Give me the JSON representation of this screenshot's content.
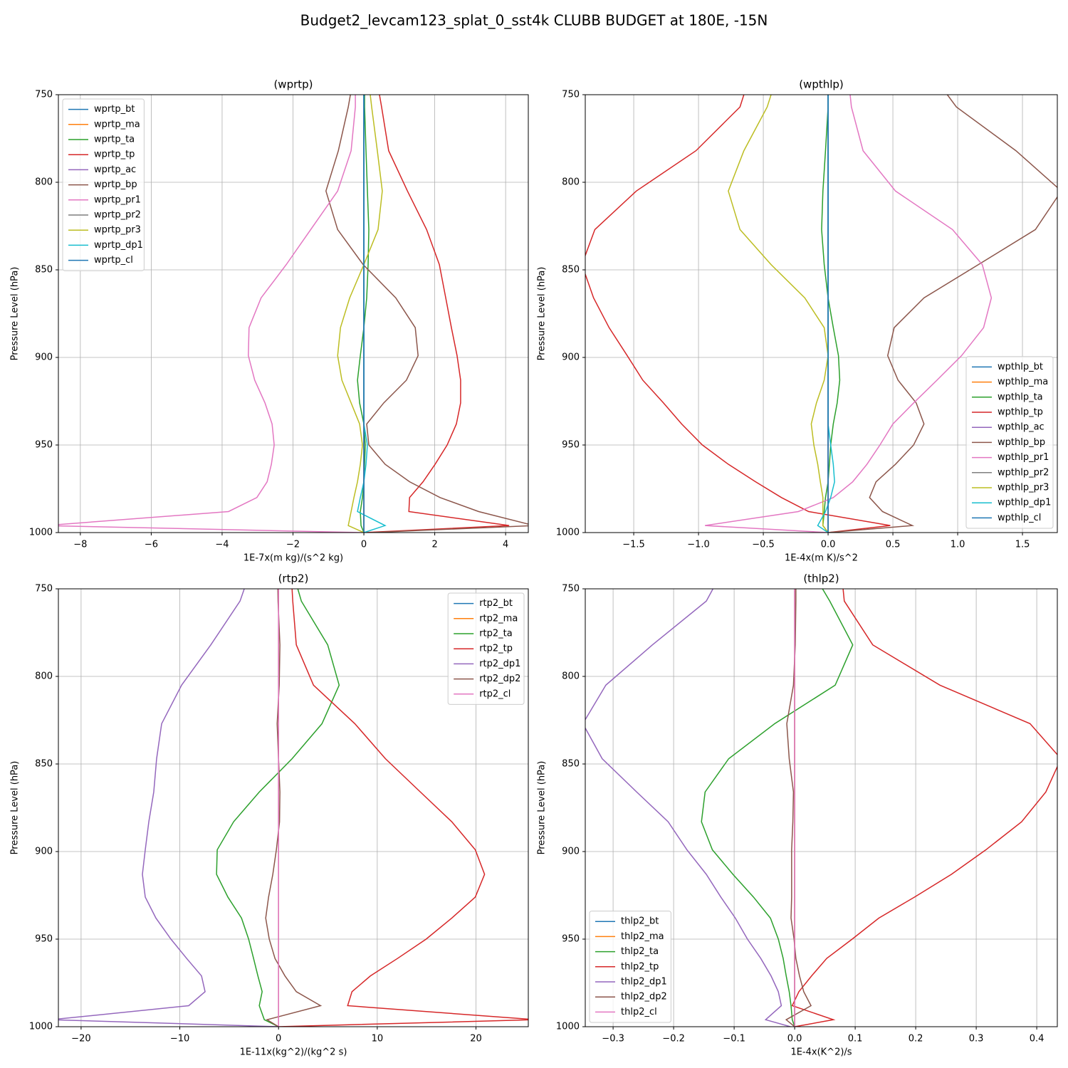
{
  "title": "Budget2_levcam123_splat_0_sst4k CLUBB BUDGET at 180E, -15N",
  "chart_data": [
    {
      "type": "line",
      "title": "(wprtp)",
      "xlabel": "1E-7x(m kg)/(s^2 kg)",
      "ylabel": "Pressure Level (hPa)",
      "grid": true,
      "legend": "upper left",
      "xlim": [
        -8.62,
        4.64
      ],
      "xticks": [
        {
          "value": -8,
          "label": "−8"
        },
        {
          "value": -6,
          "label": "−6"
        },
        {
          "value": -4,
          "label": "−4"
        },
        {
          "value": -2,
          "label": "−2"
        },
        0,
        2,
        4
      ],
      "ylim": [
        1000,
        750
      ],
      "yticks": [
        750,
        800,
        850,
        900,
        950,
        1000
      ],
      "y": [
        750,
        757,
        782,
        805,
        827,
        847,
        866,
        883,
        899,
        913,
        926,
        938,
        950,
        961,
        971,
        980,
        988,
        996,
        1000
      ],
      "series": [
        {
          "name": "wprtp_bt",
          "color": "#1f77b4",
          "values": [
            0,
            0,
            0,
            0,
            0,
            0,
            0,
            0,
            0,
            0,
            0,
            0,
            0,
            0,
            0,
            0,
            0,
            0,
            0
          ]
        },
        {
          "name": "wprtp_ma",
          "color": "#ff7f0e",
          "values": [
            0,
            0,
            0,
            0,
            0,
            0,
            0,
            0,
            0,
            0,
            0,
            0,
            0,
            0,
            0,
            0,
            0,
            0,
            0
          ]
        },
        {
          "name": "wprtp_ta",
          "color": "#2ca02c",
          "values": [
            0.02,
            0.02,
            0.06,
            0.1,
            0.14,
            0.12,
            0.08,
            0,
            -0.1,
            -0.18,
            -0.12,
            0,
            0.04,
            0.02,
            0,
            -0.04,
            -0.1,
            -0.08,
            0
          ]
        },
        {
          "name": "wprtp_tp",
          "color": "#d62728",
          "values": [
            0.44,
            0.5,
            0.7,
            1.23,
            1.77,
            2.13,
            2.31,
            2.47,
            2.63,
            2.73,
            2.73,
            2.61,
            2.35,
            2.01,
            1.67,
            1.29,
            1.27,
            4.1,
            0
          ]
        },
        {
          "name": "wprtp_ac",
          "color": "#9467bd",
          "values": [
            0,
            0,
            0,
            0,
            0,
            0,
            0,
            0,
            0,
            0,
            0,
            0,
            0,
            0,
            0,
            0,
            0,
            0,
            0
          ]
        },
        {
          "name": "wprtp_bp",
          "color": "#8c564b",
          "values": [
            -0.38,
            -0.44,
            -0.72,
            -1.07,
            -0.74,
            -0.02,
            0.9,
            1.45,
            1.53,
            1.2,
            0.56,
            0.08,
            0.14,
            0.6,
            1.29,
            2.15,
            3.24,
            4.8,
            0.2
          ]
        },
        {
          "name": "wprtp_pr1",
          "color": "#e377c2",
          "values": [
            -0.24,
            -0.24,
            -0.36,
            -0.74,
            -1.5,
            -2.19,
            -2.9,
            -3.24,
            -3.26,
            -3.08,
            -2.79,
            -2.59,
            -2.53,
            -2.61,
            -2.73,
            -3.02,
            -3.82,
            -9,
            -0.06
          ]
        },
        {
          "name": "wprtp_pr2",
          "color": "#7f7f7f",
          "values": [
            0,
            0,
            0,
            0,
            0,
            0,
            0,
            0,
            0,
            0,
            0,
            0,
            0,
            0,
            0,
            0,
            0,
            0,
            0
          ]
        },
        {
          "name": "wprtp_pr3",
          "color": "#bcbd22",
          "values": [
            0.18,
            0.22,
            0.38,
            0.52,
            0.4,
            0,
            -0.4,
            -0.66,
            -0.74,
            -0.62,
            -0.36,
            -0.12,
            -0.04,
            -0.1,
            -0.18,
            -0.28,
            -0.36,
            -0.44,
            0
          ]
        },
        {
          "name": "wprtp_dp1",
          "color": "#17becf",
          "values": [
            0,
            0,
            0,
            0,
            0,
            0,
            0,
            0,
            0,
            0,
            0,
            0,
            0.1,
            0.06,
            0,
            -0.1,
            -0.18,
            0.6,
            0
          ]
        },
        {
          "name": "wprtp_cl",
          "color": "#1f77b4",
          "values": [
            0,
            0,
            0,
            0,
            0,
            0,
            0,
            0,
            0,
            0,
            0,
            0,
            0,
            0,
            0,
            0,
            0,
            0,
            0
          ]
        }
      ]
    },
    {
      "type": "line",
      "title": "(wpthlp)",
      "xlabel": "1E-4x(m K)/s^2",
      "ylabel": "Pressure Level (hPa)",
      "grid": true,
      "legend": "lower right",
      "xlim": [
        -1.874,
        1.769
      ],
      "xticks": [
        {
          "value": -1.5,
          "label": "−1.5"
        },
        {
          "value": -1,
          "label": "−1.0"
        },
        {
          "value": -0.5,
          "label": "−0.5"
        },
        {
          "value": 0,
          "label": "0.0"
        },
        0.5,
        {
          "value": 1,
          "label": "1.0"
        },
        1.5
      ],
      "ylim": [
        1000,
        750
      ],
      "yticks": [
        750,
        800,
        850,
        900,
        950,
        1000
      ],
      "y": [
        750,
        757,
        782,
        805,
        827,
        847,
        866,
        883,
        899,
        913,
        926,
        938,
        950,
        961,
        971,
        980,
        988,
        996,
        1000
      ],
      "series": [
        {
          "name": "wpthlp_bt",
          "color": "#1f77b4",
          "values": [
            0,
            0,
            0,
            0,
            0,
            0,
            0,
            0,
            0,
            0,
            0,
            0,
            0,
            0,
            0,
            0,
            0,
            0,
            0
          ]
        },
        {
          "name": "wpthlp_ma",
          "color": "#ff7f0e",
          "values": [
            0,
            0,
            0,
            0,
            0,
            0,
            0,
            0,
            0,
            0,
            0,
            0,
            0,
            0,
            0,
            0,
            0,
            0,
            0
          ]
        },
        {
          "name": "wpthlp_ta",
          "color": "#2ca02c",
          "values": [
            0,
            0,
            -0.02,
            -0.04,
            -0.05,
            -0.03,
            0,
            0.04,
            0.08,
            0.09,
            0.07,
            0.04,
            0.02,
            0.01,
            0,
            -0.02,
            -0.03,
            -0.04,
            0
          ]
        },
        {
          "name": "wpthlp_tp",
          "color": "#d62728",
          "values": [
            -0.65,
            -0.68,
            -1.02,
            -1.48,
            -1.8,
            -1.9,
            -1.81,
            -1.69,
            -1.55,
            -1.43,
            -1.27,
            -1.13,
            -0.97,
            -0.77,
            -0.56,
            -0.36,
            -0.15,
            0.48,
            0
          ]
        },
        {
          "name": "wpthlp_ac",
          "color": "#9467bd",
          "values": [
            0,
            0,
            0,
            0,
            0,
            0,
            0,
            0,
            0,
            0,
            0,
            0,
            0,
            0,
            0,
            0,
            0,
            0,
            0
          ]
        },
        {
          "name": "wpthlp_bp",
          "color": "#8c564b",
          "values": [
            0.92,
            0.99,
            1.45,
            1.8,
            1.6,
            1.16,
            0.74,
            0.51,
            0.46,
            0.54,
            0.68,
            0.74,
            0.66,
            0.52,
            0.37,
            0.32,
            0.42,
            0.65,
            0
          ]
        },
        {
          "name": "wpthlp_pr1",
          "color": "#e377c2",
          "values": [
            0.17,
            0.18,
            0.27,
            0.52,
            0.96,
            1.19,
            1.26,
            1.2,
            1.03,
            0.84,
            0.66,
            0.5,
            0.4,
            0.3,
            0.19,
            0.04,
            -0.23,
            -0.95,
            0
          ]
        },
        {
          "name": "wpthlp_pr2",
          "color": "#7f7f7f",
          "values": [
            0,
            0,
            0,
            0,
            0,
            0,
            0,
            0,
            0,
            0,
            0,
            0,
            0,
            0,
            0,
            0,
            0,
            0,
            0
          ]
        },
        {
          "name": "wpthlp_pr3",
          "color": "#bcbd22",
          "values": [
            -0.44,
            -0.47,
            -0.65,
            -0.77,
            -0.68,
            -0.44,
            -0.18,
            -0.03,
            0,
            -0.03,
            -0.09,
            -0.13,
            -0.11,
            -0.08,
            -0.06,
            -0.04,
            -0.04,
            -0.04,
            0
          ]
        },
        {
          "name": "wpthlp_dp1",
          "color": "#17becf",
          "values": [
            0,
            0,
            0,
            0,
            0,
            0,
            0,
            0,
            0,
            0,
            0,
            0,
            0.02,
            0.04,
            0.05,
            0.02,
            -0.02,
            -0.08,
            0
          ]
        },
        {
          "name": "wpthlp_cl",
          "color": "#1f77b4",
          "values": [
            0,
            0,
            0,
            0,
            0,
            0,
            0,
            0,
            0,
            0,
            0,
            0,
            0,
            0,
            0,
            0,
            0,
            0,
            0
          ]
        }
      ]
    },
    {
      "type": "line",
      "title": "(rtp2)",
      "xlabel": "1E-11x(kg^2)/(kg^2 s)",
      "ylabel": "Pressure Level (hPa)",
      "grid": true,
      "legend": "upper right",
      "xlim": [
        -22.3,
        25.3
      ],
      "xticks": [
        {
          "value": -20,
          "label": "−20"
        },
        {
          "value": -10,
          "label": "−10"
        },
        0,
        10,
        20
      ],
      "ylim": [
        1000,
        750
      ],
      "yticks": [
        750,
        800,
        850,
        900,
        950,
        1000
      ],
      "y": [
        750,
        757,
        782,
        805,
        827,
        847,
        866,
        883,
        899,
        913,
        926,
        938,
        950,
        961,
        971,
        980,
        988,
        996,
        1000
      ],
      "series": [
        {
          "name": "rtp2_bt",
          "color": "#1f77b4",
          "values": [
            0,
            0,
            0,
            0,
            0,
            0,
            0,
            0,
            0,
            0,
            0,
            0,
            0,
            0,
            0,
            0,
            0,
            0,
            0
          ]
        },
        {
          "name": "rtp2_ma",
          "color": "#ff7f0e",
          "values": [
            0,
            0,
            0,
            0,
            0,
            0,
            0,
            0,
            0,
            0,
            0,
            0,
            0,
            0,
            0,
            0,
            0,
            0,
            0
          ]
        },
        {
          "name": "rtp2_ta",
          "color": "#2ca02c",
          "values": [
            1.95,
            2.31,
            4.98,
            6.14,
            4.4,
            1.37,
            -1.95,
            -4.55,
            -6.21,
            -6.28,
            -5.13,
            -3.75,
            -3.03,
            -2.53,
            -2.09,
            -1.66,
            -1.95,
            -1.44,
            0
          ]
        },
        {
          "name": "rtp2_tp",
          "color": "#d62728",
          "values": [
            1.37,
            1.44,
            1.8,
            3.54,
            7.73,
            10.83,
            14.37,
            17.55,
            19.93,
            20.87,
            19.93,
            17.55,
            14.95,
            12.06,
            9.31,
            7.44,
            7,
            26,
            0
          ]
        },
        {
          "name": "rtp2_dp1",
          "color": "#9467bd",
          "values": [
            -3.47,
            -3.9,
            -6.86,
            -9.82,
            -11.84,
            -12.35,
            -12.64,
            -13.14,
            -13.5,
            -13.79,
            -13.5,
            -12.42,
            -10.9,
            -9.31,
            -7.8,
            -7.44,
            -9.1,
            -23,
            0
          ]
        },
        {
          "name": "rtp2_dp2",
          "color": "#8c564b",
          "values": [
            -0.07,
            -0.05,
            0.14,
            0.07,
            -0.14,
            0,
            0.14,
            0.1,
            -0.22,
            -0.58,
            -1.01,
            -1.3,
            -0.94,
            -0.36,
            0.65,
            1.8,
            4.26,
            -1.16,
            0
          ]
        },
        {
          "name": "rtp2_cl",
          "color": "#e377c2",
          "values": [
            0,
            0,
            0,
            0,
            0,
            0,
            0,
            0,
            0,
            0,
            0,
            0,
            0,
            0,
            0,
            0,
            0,
            0,
            0
          ]
        }
      ]
    },
    {
      "type": "line",
      "title": "(thlp2)",
      "xlabel": "1E-4x(K^2)/s",
      "ylabel": "Pressure Level (hPa)",
      "grid": true,
      "legend": "lower left",
      "xlim": [
        -0.346,
        0.434
      ],
      "xticks": [
        {
          "value": -0.3,
          "label": "−0.3"
        },
        {
          "value": -0.2,
          "label": "−0.2"
        },
        {
          "value": -0.1,
          "label": "−0.1"
        },
        {
          "value": 0,
          "label": "0.0"
        },
        0.1,
        0.2,
        0.3,
        0.4
      ],
      "ylim": [
        1000,
        750
      ],
      "yticks": [
        750,
        800,
        850,
        900,
        950,
        1000
      ],
      "y": [
        750,
        757,
        782,
        805,
        827,
        847,
        866,
        883,
        899,
        913,
        926,
        938,
        950,
        961,
        971,
        980,
        988,
        996,
        1000
      ],
      "series": [
        {
          "name": "thlp2_bt",
          "color": "#1f77b4",
          "values": [
            0,
            0,
            0,
            0,
            0,
            0,
            0,
            0,
            0,
            0,
            0,
            0,
            0,
            0,
            0,
            0,
            0,
            0,
            0
          ]
        },
        {
          "name": "thlp2_ma",
          "color": "#ff7f0e",
          "values": [
            0,
            0,
            0,
            0,
            0,
            0,
            0,
            0,
            0,
            0,
            0,
            0,
            0,
            0,
            0,
            0,
            0,
            0,
            0
          ]
        },
        {
          "name": "thlp2_ta",
          "color": "#2ca02c",
          "values": [
            0.046,
            0.058,
            0.096,
            0.067,
            -0.033,
            -0.109,
            -0.148,
            -0.154,
            -0.136,
            -0.102,
            -0.068,
            -0.04,
            -0.027,
            -0.019,
            -0.014,
            -0.009,
            -0.006,
            -0.004,
            0
          ]
        },
        {
          "name": "thlp2_tp",
          "color": "#d62728",
          "values": [
            0.08,
            0.082,
            0.129,
            0.24,
            0.389,
            0.44,
            0.415,
            0.375,
            0.316,
            0.259,
            0.198,
            0.139,
            0.095,
            0.053,
            0.028,
            0.007,
            -0.004,
            0.064,
            0
          ]
        },
        {
          "name": "thlp2_dp1",
          "color": "#9467bd",
          "values": [
            -0.135,
            -0.146,
            -0.235,
            -0.312,
            -0.35,
            -0.318,
            -0.261,
            -0.209,
            -0.178,
            -0.146,
            -0.122,
            -0.098,
            -0.078,
            -0.056,
            -0.039,
            -0.027,
            -0.022,
            -0.048,
            -0.007
          ]
        },
        {
          "name": "thlp2_dp2",
          "color": "#8c564b",
          "values": [
            0.002,
            0.002,
            0.001,
            -0.002,
            -0.013,
            -0.009,
            -0.002,
            -0.003,
            -0.005,
            -0.005,
            -0.005,
            -0.006,
            -0.001,
            0.002,
            0.008,
            0.015,
            0.027,
            -0.014,
            0
          ]
        },
        {
          "name": "thlp2_cl",
          "color": "#e377c2",
          "values": [
            0,
            0,
            0,
            0,
            0,
            0,
            0,
            0,
            0,
            0,
            0,
            0,
            0,
            0,
            0,
            0,
            0,
            0,
            0
          ]
        }
      ]
    }
  ]
}
